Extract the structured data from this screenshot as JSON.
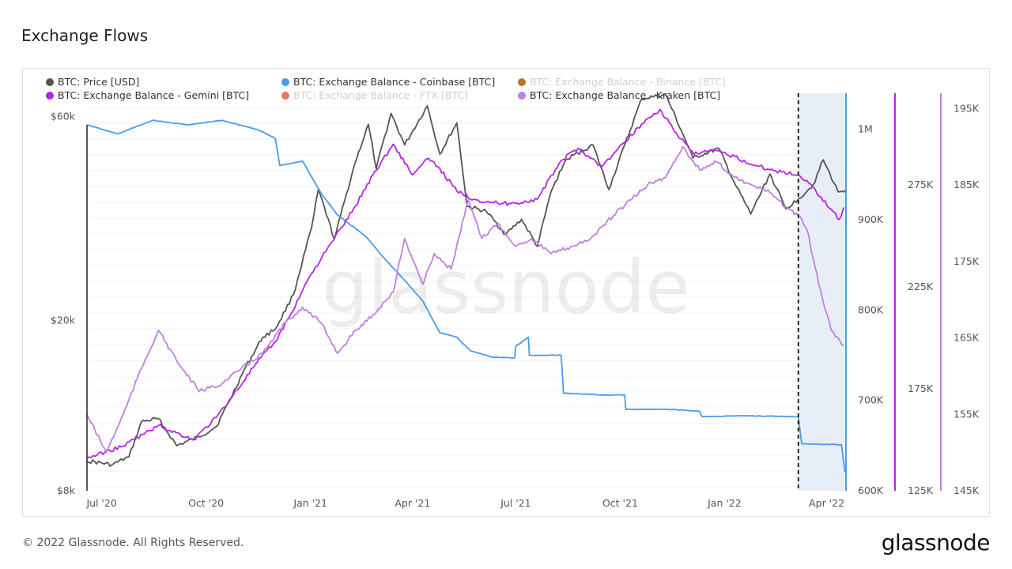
{
  "page": {
    "title": "Exchange Flows",
    "copyright": "© 2022 Glassnode. All Rights Reserved.",
    "logo": "glassnode",
    "watermark": "glassnode"
  },
  "legend": [
    {
      "label": "BTC: Price [USD]",
      "color": "#555555",
      "faded": false
    },
    {
      "label": "BTC: Exchange Balance - Coinbase [BTC]",
      "color": "#4a9bea",
      "faded": false
    },
    {
      "label": "BTC: Exchange Balance - Binance [BTC]",
      "color": "#b5651d",
      "faded": true
    },
    {
      "label": "BTC: Exchange Balance - Gemini [BTC]",
      "color": "#b526e6",
      "faded": false
    },
    {
      "label": "BTC: Exchange Balance - FTX [BTC]",
      "color": "#f0625a",
      "faded": true
    },
    {
      "label": "BTC: Exchange Balance - Kraken [BTC]",
      "color": "#c07ee4",
      "faded": false
    }
  ],
  "chart_data": {
    "type": "line",
    "x_ticks": [
      "Jul '20",
      "Oct '20",
      "Jan '21",
      "Apr '21",
      "Jul '21",
      "Oct '21",
      "Jan '22",
      "Apr '22"
    ],
    "x_range": [
      "2020-06-18",
      "2022-04-18"
    ],
    "highlight": {
      "from": "2022-03-07",
      "to": "2022-04-18",
      "color": "#e8eef8"
    },
    "axes": {
      "price": {
        "ticks": [
          "$60k",
          "$20k",
          "$8k"
        ],
        "values": [
          60000,
          20000,
          8000
        ],
        "scale": "log",
        "range": [
          8000,
          68000
        ]
      },
      "coinbase": {
        "ticks": [
          "1M",
          "900K",
          "800K",
          "700K",
          "600K"
        ],
        "range": [
          600000,
          1040000
        ]
      },
      "gemini": {
        "ticks": [
          "275K",
          "225K",
          "175K",
          "125K"
        ],
        "range": [
          125000,
          320000
        ],
        "color": "#b526e6"
      },
      "kraken": {
        "ticks": [
          "195K",
          "185K",
          "175K",
          "165K",
          "155K",
          "145K"
        ],
        "range": [
          145000,
          197000
        ],
        "color": "#c07ee4"
      }
    },
    "series": [
      {
        "name": "BTC: Price [USD]",
        "axis": "price",
        "color": "#555555",
        "points": [
          [
            "2020-06-18",
            9400
          ],
          [
            "2020-07-10",
            9200
          ],
          [
            "2020-07-25",
            9600
          ],
          [
            "2020-08-05",
            11600
          ],
          [
            "2020-08-20",
            11800
          ],
          [
            "2020-09-05",
            10200
          ],
          [
            "2020-09-25",
            10700
          ],
          [
            "2020-10-10",
            11300
          ],
          [
            "2020-10-21",
            12900
          ],
          [
            "2020-11-05",
            15600
          ],
          [
            "2020-11-20",
            18300
          ],
          [
            "2020-12-01",
            19100
          ],
          [
            "2020-12-17",
            23000
          ],
          [
            "2021-01-02",
            33000
          ],
          [
            "2021-01-08",
            40500
          ],
          [
            "2021-01-22",
            31000
          ],
          [
            "2021-02-09",
            46500
          ],
          [
            "2021-02-21",
            57500
          ],
          [
            "2021-02-28",
            45300
          ],
          [
            "2021-03-13",
            61000
          ],
          [
            "2021-03-25",
            51500
          ],
          [
            "2021-04-14",
            63500
          ],
          [
            "2021-04-25",
            49000
          ],
          [
            "2021-05-10",
            58000
          ],
          [
            "2021-05-19",
            37000
          ],
          [
            "2021-06-05",
            36000
          ],
          [
            "2021-06-22",
            31800
          ],
          [
            "2021-07-06",
            34500
          ],
          [
            "2021-07-20",
            29800
          ],
          [
            "2021-08-01",
            40000
          ],
          [
            "2021-08-14",
            47500
          ],
          [
            "2021-09-07",
            51500
          ],
          [
            "2021-09-21",
            40500
          ],
          [
            "2021-10-05",
            51500
          ],
          [
            "2021-10-20",
            66000
          ],
          [
            "2021-11-10",
            67500
          ],
          [
            "2021-11-26",
            54000
          ],
          [
            "2021-12-04",
            48000
          ],
          [
            "2021-12-27",
            50500
          ],
          [
            "2022-01-10",
            41800
          ],
          [
            "2022-01-24",
            35500
          ],
          [
            "2022-02-10",
            44000
          ],
          [
            "2022-02-24",
            36500
          ],
          [
            "2022-03-07",
            38500
          ],
          [
            "2022-03-20",
            41500
          ],
          [
            "2022-03-29",
            47500
          ],
          [
            "2022-04-11",
            40000
          ],
          [
            "2022-04-18",
            40500
          ]
        ]
      },
      {
        "name": "BTC: Exchange Balance - Coinbase [BTC]",
        "axis": "coinbase",
        "color": "#4a9bea",
        "points": [
          [
            "2020-06-18",
            1005000
          ],
          [
            "2020-07-15",
            995000
          ],
          [
            "2020-08-15",
            1010000
          ],
          [
            "2020-09-15",
            1005000
          ],
          [
            "2020-10-15",
            1010000
          ],
          [
            "2020-11-15",
            1000000
          ],
          [
            "2020-12-01",
            990000
          ],
          [
            "2020-12-05",
            960000
          ],
          [
            "2020-12-25",
            965000
          ],
          [
            "2021-01-10",
            930000
          ],
          [
            "2021-01-25",
            905000
          ],
          [
            "2021-02-10",
            890000
          ],
          [
            "2021-02-20",
            880000
          ],
          [
            "2021-03-05",
            860000
          ],
          [
            "2021-03-20",
            840000
          ],
          [
            "2021-04-10",
            810000
          ],
          [
            "2021-04-25",
            775000
          ],
          [
            "2021-05-10",
            770000
          ],
          [
            "2021-05-22",
            755000
          ],
          [
            "2021-06-10",
            748000
          ],
          [
            "2021-06-30",
            747000
          ],
          [
            "2021-07-01",
            760000
          ],
          [
            "2021-07-12",
            770000
          ],
          [
            "2021-07-13",
            750000
          ],
          [
            "2021-08-10",
            750000
          ],
          [
            "2021-08-12",
            708000
          ],
          [
            "2021-09-15",
            706000
          ],
          [
            "2021-10-05",
            706000
          ],
          [
            "2021-10-06",
            690000
          ],
          [
            "2021-11-15",
            690000
          ],
          [
            "2021-12-10",
            688000
          ],
          [
            "2021-12-12",
            682000
          ],
          [
            "2022-01-20",
            683000
          ],
          [
            "2022-03-07",
            682000
          ],
          [
            "2022-03-10",
            652000
          ],
          [
            "2022-04-14",
            651000
          ],
          [
            "2022-04-17",
            621000
          ]
        ]
      },
      {
        "name": "BTC: Exchange Balance - Gemini [BTC]",
        "axis": "gemini",
        "color": "#b526e6",
        "points": [
          [
            "2020-06-18",
            141000
          ],
          [
            "2020-07-20",
            147000
          ],
          [
            "2020-08-20",
            157000
          ],
          [
            "2020-09-20",
            150000
          ],
          [
            "2020-10-10",
            161000
          ],
          [
            "2020-10-25",
            172000
          ],
          [
            "2020-11-15",
            188000
          ],
          [
            "2020-12-01",
            198000
          ],
          [
            "2020-12-15",
            212000
          ],
          [
            "2020-12-31",
            230000
          ],
          [
            "2021-01-20",
            247000
          ],
          [
            "2021-02-10",
            265000
          ],
          [
            "2021-02-25",
            280000
          ],
          [
            "2021-03-15",
            295000
          ],
          [
            "2021-04-01",
            280000
          ],
          [
            "2021-04-15",
            288000
          ],
          [
            "2021-04-25",
            283000
          ],
          [
            "2021-05-10",
            272000
          ],
          [
            "2021-05-25",
            268000
          ],
          [
            "2021-06-15",
            266000
          ],
          [
            "2021-06-30",
            266000
          ],
          [
            "2021-07-20",
            268000
          ],
          [
            "2021-08-10",
            287000
          ],
          [
            "2021-08-25",
            293000
          ],
          [
            "2021-09-15",
            284000
          ],
          [
            "2021-10-05",
            296000
          ],
          [
            "2021-10-20",
            305000
          ],
          [
            "2021-11-05",
            312000
          ],
          [
            "2021-11-20",
            300000
          ],
          [
            "2021-12-05",
            290000
          ],
          [
            "2021-12-20",
            292000
          ],
          [
            "2022-01-10",
            289000
          ],
          [
            "2022-01-25",
            285000
          ],
          [
            "2022-02-15",
            282000
          ],
          [
            "2022-03-07",
            280000
          ],
          [
            "2022-03-20",
            274000
          ],
          [
            "2022-04-05",
            263000
          ],
          [
            "2022-04-12",
            258000
          ],
          [
            "2022-04-16",
            264000
          ]
        ]
      },
      {
        "name": "BTC: Exchange Balance - Kraken [BTC]",
        "axis": "kraken",
        "color": "#c07ee4",
        "points": [
          [
            "2020-06-18",
            155000
          ],
          [
            "2020-07-05",
            150000
          ],
          [
            "2020-07-20",
            155000
          ],
          [
            "2020-08-05",
            161000
          ],
          [
            "2020-08-20",
            166000
          ],
          [
            "2020-09-05",
            162000
          ],
          [
            "2020-09-25",
            158000
          ],
          [
            "2020-10-15",
            159000
          ],
          [
            "2020-11-01",
            161000
          ],
          [
            "2020-11-20",
            163000
          ],
          [
            "2020-12-10",
            167000
          ],
          [
            "2020-12-25",
            169000
          ],
          [
            "2021-01-10",
            167000
          ],
          [
            "2021-01-25",
            163000
          ],
          [
            "2021-02-10",
            166000
          ],
          [
            "2021-02-25",
            168000
          ],
          [
            "2021-03-15",
            171000
          ],
          [
            "2021-03-25",
            178000
          ],
          [
            "2021-04-10",
            172000
          ],
          [
            "2021-04-20",
            176000
          ],
          [
            "2021-05-05",
            174000
          ],
          [
            "2021-05-20",
            183000
          ],
          [
            "2021-06-01",
            178000
          ],
          [
            "2021-06-15",
            180000
          ],
          [
            "2021-07-01",
            177000
          ],
          [
            "2021-07-15",
            178000
          ],
          [
            "2021-08-01",
            176000
          ],
          [
            "2021-08-20",
            177000
          ],
          [
            "2021-09-05",
            178000
          ],
          [
            "2021-09-25",
            181000
          ],
          [
            "2021-10-10",
            183000
          ],
          [
            "2021-10-25",
            185000
          ],
          [
            "2021-11-10",
            186000
          ],
          [
            "2021-11-25",
            190000
          ],
          [
            "2021-12-10",
            187000
          ],
          [
            "2021-12-25",
            188000
          ],
          [
            "2022-01-10",
            186000
          ],
          [
            "2022-01-25",
            185000
          ],
          [
            "2022-02-10",
            184000
          ],
          [
            "2022-02-25",
            182000
          ],
          [
            "2022-03-07",
            181000
          ],
          [
            "2022-03-15",
            179000
          ],
          [
            "2022-03-25",
            172000
          ],
          [
            "2022-04-05",
            166000
          ],
          [
            "2022-04-16",
            164000
          ]
        ]
      }
    ]
  }
}
